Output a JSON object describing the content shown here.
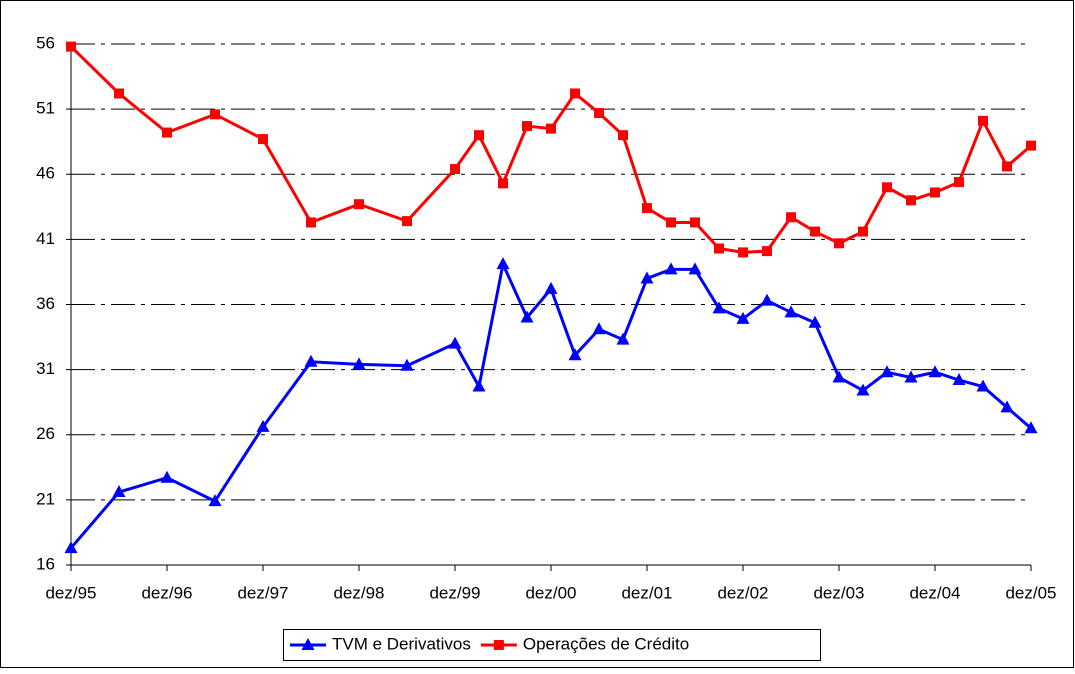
{
  "chart_data": {
    "type": "line",
    "x": [
      1995,
      1995.5,
      1996,
      1996.5,
      1997,
      1997.5,
      1998,
      1998.5,
      1999,
      1999.25,
      1999.5,
      1999.75,
      2000,
      2000.25,
      2000.5,
      2000.75,
      2001,
      2001.25,
      2001.5,
      2001.75,
      2002,
      2002.25,
      2002.5,
      2002.75,
      2003,
      2003.25,
      2003.5,
      2003.75,
      2004,
      2004.25,
      2004.5,
      2004.75,
      2005
    ],
    "series": [
      {
        "name": "TVM e Derivativos",
        "color": "#0000ff",
        "marker": "triangle",
        "values": [
          17.3,
          21.6,
          22.7,
          20.9,
          26.6,
          31.6,
          31.4,
          31.3,
          33.0,
          29.7,
          39.1,
          35.0,
          37.2,
          32.1,
          34.1,
          33.3,
          38.0,
          38.7,
          38.7,
          35.7,
          34.9,
          36.3,
          35.4,
          34.6,
          30.4,
          29.4,
          30.8,
          30.4,
          30.8,
          30.2,
          29.7,
          28.1,
          26.5
        ]
      },
      {
        "name": "Operações de Crédito",
        "color": "#ff0000",
        "marker": "square",
        "values": [
          55.8,
          52.2,
          49.2,
          50.6,
          48.7,
          42.3,
          43.7,
          42.4,
          46.4,
          49.0,
          45.3,
          49.7,
          49.5,
          52.2,
          50.7,
          49.0,
          43.4,
          42.3,
          42.3,
          40.3,
          40.0,
          40.1,
          42.7,
          41.6,
          40.7,
          41.6,
          45.0,
          44.0,
          44.6,
          45.4,
          50.1,
          46.6,
          48.2
        ]
      }
    ],
    "xlim": [
      1995,
      2005
    ],
    "xticks": [
      {
        "value": 1995,
        "label": "dez/95"
      },
      {
        "value": 1996,
        "label": "dez/96"
      },
      {
        "value": 1997,
        "label": "dez/97"
      },
      {
        "value": 1998,
        "label": "dez/98"
      },
      {
        "value": 1999,
        "label": "dez/99"
      },
      {
        "value": 2000,
        "label": "dez/00"
      },
      {
        "value": 2001,
        "label": "dez/01"
      },
      {
        "value": 2002,
        "label": "dez/02"
      },
      {
        "value": 2003,
        "label": "dez/03"
      },
      {
        "value": 2004,
        "label": "dez/04"
      },
      {
        "value": 2005,
        "label": "dez/05"
      }
    ],
    "ylim": [
      16,
      56
    ],
    "yticks": [
      16,
      21,
      26,
      31,
      36,
      41,
      46,
      51,
      56
    ],
    "grid": true,
    "legend": "bottom"
  }
}
